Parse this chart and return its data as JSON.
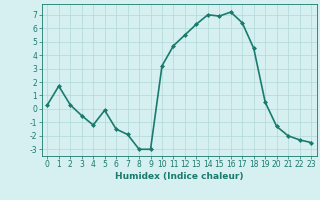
{
  "x": [
    0,
    1,
    2,
    3,
    4,
    5,
    6,
    7,
    8,
    9,
    10,
    11,
    12,
    13,
    14,
    15,
    16,
    17,
    18,
    19,
    20,
    21,
    22,
    23
  ],
  "y": [
    0.3,
    1.7,
    0.3,
    -0.5,
    -1.2,
    -0.1,
    -1.5,
    -1.9,
    -3.0,
    -3.0,
    3.2,
    4.7,
    5.5,
    6.3,
    7.0,
    6.9,
    7.2,
    6.4,
    4.5,
    0.5,
    -1.3,
    -2.0,
    -2.3,
    -2.5
  ],
  "line_color": "#1a7a6e",
  "marker": "D",
  "marker_size": 2.0,
  "bg_color": "#d6eff0",
  "grid_color": "#b0d8d8",
  "xlabel": "Humidex (Indice chaleur)",
  "xlim": [
    -0.5,
    23.5
  ],
  "ylim": [
    -3.5,
    7.8
  ],
  "yticks": [
    -3,
    -2,
    -1,
    0,
    1,
    2,
    3,
    4,
    5,
    6,
    7
  ],
  "xticks": [
    0,
    1,
    2,
    3,
    4,
    5,
    6,
    7,
    8,
    9,
    10,
    11,
    12,
    13,
    14,
    15,
    16,
    17,
    18,
    19,
    20,
    21,
    22,
    23
  ],
  "tick_fontsize": 5.5,
  "label_fontsize": 6.5,
  "linewidth": 1.2
}
